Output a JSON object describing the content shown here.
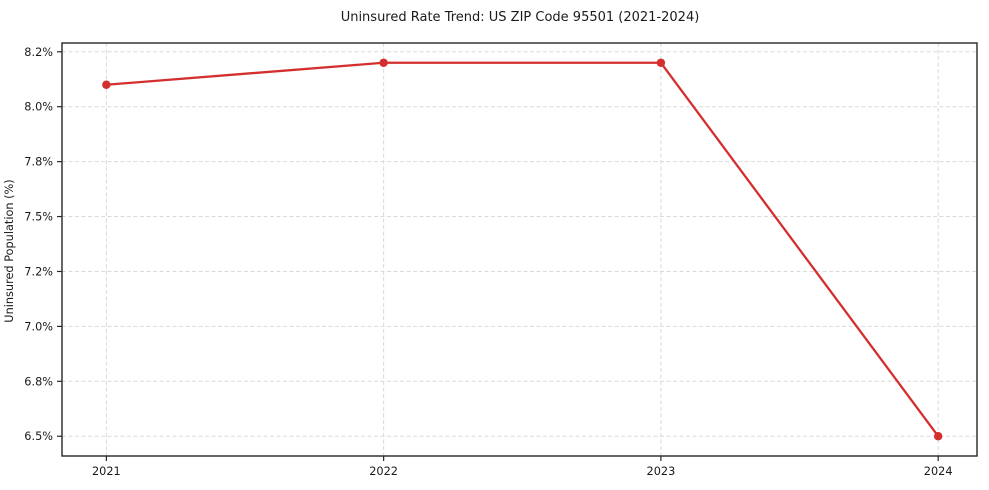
{
  "chart_data": {
    "type": "line",
    "title": "Uninsured Rate Trend: US ZIP Code 95501 (2021-2024)",
    "ylabel": "Uninsured Population (%)",
    "xlabel": "",
    "x": [
      2021,
      2022,
      2023,
      2024
    ],
    "x_tick_labels": [
      "2021",
      "2022",
      "2023",
      "2024"
    ],
    "series": [
      {
        "name": "Uninsured rate",
        "values": [
          8.1,
          8.2,
          8.2,
          6.5
        ]
      }
    ],
    "y_tick_values": [
      6.5,
      6.75,
      7.0,
      7.25,
      7.5,
      7.75,
      8.0,
      8.25
    ],
    "y_tick_labels": [
      "6.5%",
      "6.8%",
      "7.0%",
      "7.2%",
      "7.5%",
      "7.8%",
      "8.0%",
      "8.2%"
    ],
    "xlim": [
      2020.84,
      2024.14
    ],
    "ylim": [
      6.41,
      8.29
    ],
    "grid": true,
    "grid_style": "dashed",
    "legend": false,
    "marker": "circle",
    "colors": {
      "line": "#d32f2f",
      "marker": "#d32f2f",
      "grid": "#d9d9d9",
      "spine": "#262626",
      "text": "#1a1a1a",
      "background": "#ffffff"
    }
  }
}
